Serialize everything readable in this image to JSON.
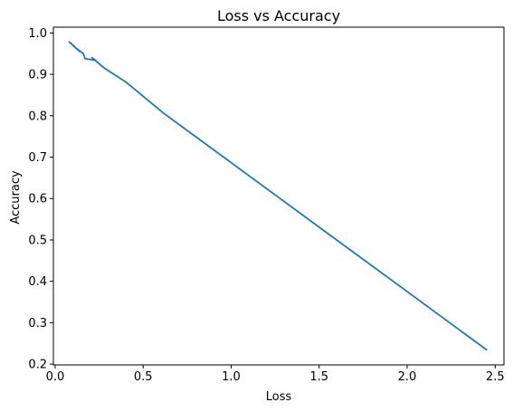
{
  "colors": {
    "background": "#ffffff",
    "axes": "#000000",
    "line": "#1f77b4"
  },
  "chart_data": {
    "type": "line",
    "title": "Loss vs Accuracy",
    "xlabel": "Loss",
    "ylabel": "Accuracy",
    "xlim": [
      -0.01,
      2.55
    ],
    "ylim": [
      0.198,
      1.014
    ],
    "grid": false,
    "x_ticks": [
      0.0,
      0.5,
      1.0,
      1.5,
      2.0,
      2.5
    ],
    "x_tick_labels": [
      "0.0",
      "0.5",
      "1.0",
      "1.5",
      "2.0",
      "2.5"
    ],
    "y_ticks": [
      0.2,
      0.3,
      0.4,
      0.5,
      0.6,
      0.7,
      0.8,
      0.9,
      1.0
    ],
    "y_tick_labels": [
      "0.2",
      "0.3",
      "0.4",
      "0.5",
      "0.6",
      "0.7",
      "0.8",
      "0.9",
      "1.0"
    ],
    "series": [
      {
        "x": [
          2.45,
          0.62,
          0.4,
          0.28,
          0.21,
          0.23,
          0.17,
          0.16,
          0.12,
          0.1,
          0.14,
          0.09,
          0.11,
          0.08
        ],
        "y": [
          0.235,
          0.805,
          0.882,
          0.915,
          0.94,
          0.934,
          0.938,
          0.95,
          0.963,
          0.97,
          0.955,
          0.975,
          0.967,
          0.978
        ]
      }
    ]
  }
}
